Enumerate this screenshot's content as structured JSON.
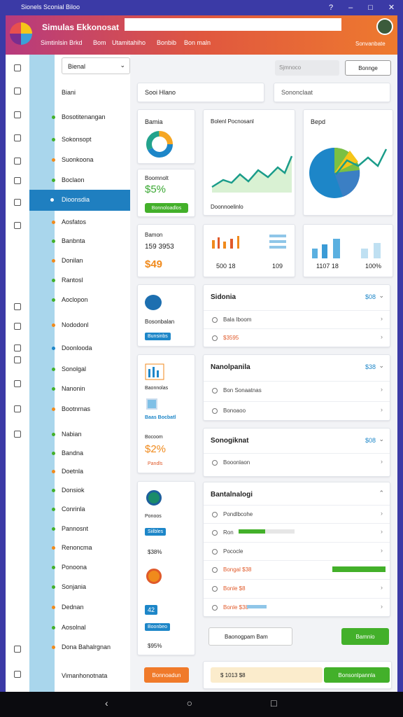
{
  "window_title": "Sionels Sconial Biloo",
  "header": {
    "title": "Simulas Ekkonosat",
    "nav": [
      "Simtinlsin Brkd",
      "Bom",
      "Utamitahiho",
      "Bonbib",
      "Bon maln"
    ],
    "account": "Sonvanbate"
  },
  "sidebar": {
    "select": "Bienal",
    "items": [
      "Biani",
      "Bosotitenangan",
      "Sokonsopt",
      "Suonkoona",
      "Boclaon",
      "Dioonsdia",
      "Aosfatos",
      "Banbnta",
      "Donilan",
      "Rantosl",
      "Aoclopon",
      "Nododonl",
      "Doonlooda",
      "Sonolgal",
      "Nanonin",
      "Bootnrnas",
      "Nabian",
      "Bandna",
      "Doetnla",
      "Donsiok",
      "Conrinla",
      "Pannosnt",
      "Renoncma",
      "Ponoona",
      "Sonjania",
      "Dednan",
      "Aosolnal",
      "Dona Bahalrgnan",
      "Vimanhonotnata"
    ]
  },
  "toolbar": {
    "search": "Sjmnoco",
    "button": "Bonnge"
  },
  "filters": {
    "input": "Sooi Hlano",
    "select": "Sononclaat"
  },
  "cards": {
    "donut": {
      "title": "Bamia"
    },
    "kpi": {
      "label": "Boomnolt",
      "value": "$5%",
      "button": "Bonnoloadlos"
    },
    "line": {
      "title": "Bolenl Pocnosanl",
      "footer": "Doonnoelinlo"
    },
    "pie": {
      "title": "Bepd"
    },
    "money": {
      "label": "Bamon",
      "value": "159 3953",
      "amount": "$49"
    },
    "bars1": {
      "left": "500 18",
      "right": "109"
    },
    "bars2": {
      "left": "1107 18",
      "right": "100%"
    },
    "profile": {
      "label": "Bosonbalan",
      "chip": "Bunsinbs"
    },
    "report": {
      "label": "Baonnolas",
      "link": "Baas Bocbatl",
      "label2": "Bocoom",
      "value": "$2%",
      "note": "Pandls"
    },
    "people": {
      "label": "Ponoos",
      "chip1": "Siilbles",
      "value1": "$38%",
      "chip2": "42",
      "chip3": "Boonbeo",
      "value2": "$95%"
    }
  },
  "sections": [
    {
      "title": "Sidonia",
      "badge": "$08",
      "rows": [
        "Bala Iboom",
        "$3595"
      ]
    },
    {
      "title": "Nanolpanila",
      "badge": "$38",
      "rows": [
        "Bon Sonaatnas",
        "Bonoaoo"
      ]
    },
    {
      "title": "Sonogiknat",
      "badge": "$08",
      "rows": [
        "Booonlaon"
      ]
    },
    {
      "title": "Bantalnalogi",
      "rows": [
        "Pondlbcohe",
        "Ron",
        "Pococle",
        "Bongal $38",
        "Bonle $8",
        "Bonle $38"
      ]
    }
  ],
  "footer": {
    "select": "Baonogpam Bam",
    "button": "Bamnio",
    "left_button": "Bonnoadun",
    "status": "$ 1013 $8",
    "right_button": "Bonsonlpannla"
  }
}
